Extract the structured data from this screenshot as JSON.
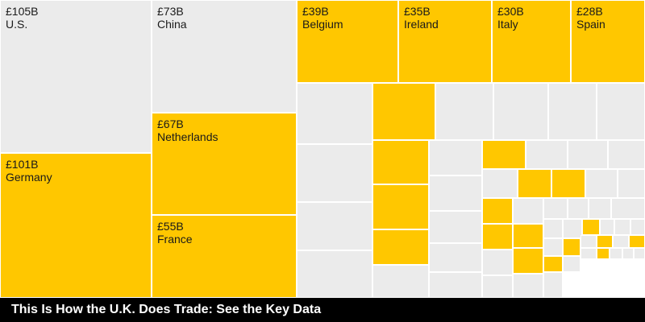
{
  "colors": {
    "eu": "#FFC700",
    "non_eu": "#EBEBEB",
    "caption_bg": "#000000",
    "caption_text": "#FFFFFF"
  },
  "caption": "This Is How the U.K. Does Trade: See the Key Data",
  "chart_data": {
    "type": "treemap",
    "title": "This Is How the U.K. Does Trade: See the Key Data",
    "unit": "£B",
    "labeled": [
      {
        "name": "U.S.",
        "label": "£105B",
        "value": 105,
        "group": "non_eu"
      },
      {
        "name": "Germany",
        "label": "£101B",
        "value": 101,
        "group": "eu"
      },
      {
        "name": "China",
        "label": "£73B",
        "value": 73,
        "group": "non_eu"
      },
      {
        "name": "Netherlands",
        "label": "£67B",
        "value": 67,
        "group": "eu"
      },
      {
        "name": "France",
        "label": "£55B",
        "value": 55,
        "group": "eu"
      },
      {
        "name": "Belgium",
        "label": "£39B",
        "value": 39,
        "group": "eu"
      },
      {
        "name": "Ireland",
        "label": "£35B",
        "value": 35,
        "group": "eu"
      },
      {
        "name": "Italy",
        "label": "£30B",
        "value": 30,
        "group": "eu"
      },
      {
        "name": "Spain",
        "label": "£28B",
        "value": 28,
        "group": "eu"
      }
    ],
    "unlabeled": [
      "non_eu",
      "eu",
      "non_eu",
      "non_eu",
      "non_eu",
      "non_eu",
      "non_eu",
      "eu",
      "non_eu",
      "eu",
      "non_eu",
      "non_eu",
      "non_eu",
      "non_eu",
      "eu",
      "non_eu",
      "non_eu",
      "eu",
      "eu",
      "non_eu",
      "non_eu",
      "non_eu",
      "eu",
      "non_eu",
      "eu",
      "non_eu",
      "non_eu",
      "non_eu",
      "non_eu",
      "non_eu",
      "non_eu",
      "non_eu",
      "eu",
      "eu",
      "non_eu",
      "non_eu",
      "eu",
      "non_eu",
      "non_eu",
      "non_eu",
      "non_eu",
      "non_eu",
      "eu",
      "non_eu",
      "eu",
      "non_eu",
      "eu",
      "non_eu",
      "eu",
      "non_eu",
      "non_eu",
      "eu",
      "non_eu",
      "non_eu",
      "eu",
      "non_eu",
      "non_eu",
      "non_eu",
      "non_eu"
    ]
  }
}
